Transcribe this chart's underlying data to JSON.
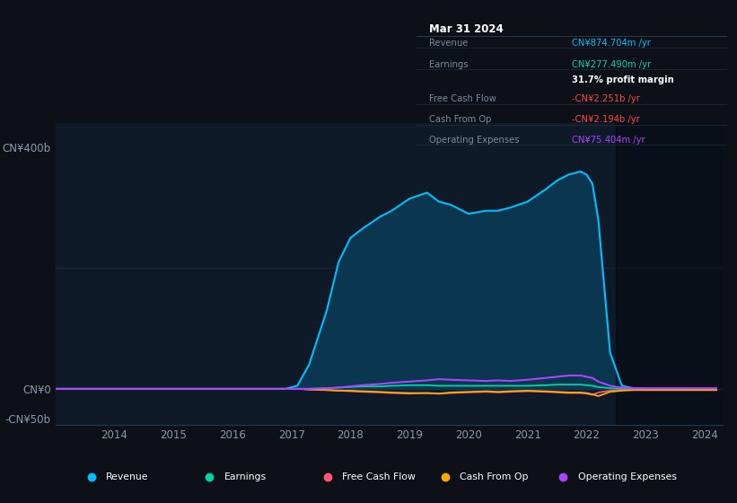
{
  "bg_color": "#0d1117",
  "plot_bg_color": "#0e1a27",
  "grid_color": "#1a3040",
  "years": [
    2013.0,
    2013.5,
    2014.0,
    2014.5,
    2015.0,
    2015.5,
    2016.0,
    2016.5,
    2016.9,
    2017.1,
    2017.3,
    2017.6,
    2017.8,
    2018.0,
    2018.2,
    2018.5,
    2018.7,
    2019.0,
    2019.3,
    2019.5,
    2019.7,
    2020.0,
    2020.3,
    2020.5,
    2020.7,
    2021.0,
    2021.3,
    2021.5,
    2021.7,
    2021.9,
    2022.0,
    2022.1,
    2022.2,
    2022.4,
    2022.6,
    2022.8,
    2023.0,
    2023.5,
    2024.0,
    2024.2
  ],
  "revenue": [
    0,
    0,
    0,
    0,
    0,
    0,
    0,
    0,
    0,
    5,
    40,
    130,
    210,
    250,
    265,
    285,
    295,
    315,
    325,
    310,
    305,
    290,
    295,
    295,
    300,
    310,
    330,
    345,
    355,
    360,
    355,
    340,
    280,
    60,
    5,
    1,
    0,
    0,
    0,
    0
  ],
  "earnings": [
    0,
    0,
    0,
    0,
    0,
    0,
    0,
    0,
    0,
    0,
    0,
    1,
    2,
    3,
    4,
    4,
    5,
    6,
    6,
    5,
    5,
    5,
    5,
    5,
    5,
    5,
    6,
    7,
    7,
    7,
    6,
    5,
    3,
    1,
    0,
    0,
    0,
    0,
    0,
    0
  ],
  "free_cash_flow": [
    0,
    0,
    0,
    0,
    0,
    0,
    0,
    0,
    0,
    0,
    -1,
    -2,
    -3,
    -4,
    -5,
    -6,
    -7,
    -8,
    -7,
    -8,
    -7,
    -6,
    -5,
    -6,
    -5,
    -4,
    -5,
    -6,
    -7,
    -7,
    -8,
    -10,
    -6,
    -3,
    -2,
    -2,
    -2,
    -2,
    -2,
    -2
  ],
  "cash_from_op": [
    0,
    0,
    0,
    0,
    0,
    0,
    0,
    0,
    0,
    0,
    -1,
    -2,
    -3,
    -3,
    -4,
    -5,
    -6,
    -7,
    -7,
    -8,
    -6,
    -5,
    -4,
    -5,
    -4,
    -3,
    -4,
    -5,
    -6,
    -6,
    -7,
    -9,
    -12,
    -5,
    -3,
    -2,
    -2,
    -2,
    -2,
    -2
  ],
  "op_expenses": [
    0,
    0,
    0,
    0,
    0,
    0,
    0,
    0,
    0,
    0,
    0,
    1,
    2,
    4,
    6,
    8,
    10,
    12,
    14,
    16,
    15,
    14,
    13,
    14,
    13,
    15,
    18,
    20,
    22,
    22,
    20,
    18,
    12,
    5,
    2,
    1,
    1,
    1,
    1,
    1
  ],
  "revenue_color": "#00bfff",
  "earnings_color": "#00d4aa",
  "free_cash_color": "#ff5577",
  "cash_op_color": "#ffaa00",
  "op_exp_color": "#aa44ff",
  "revenue_fill_color": "#0a3a55",
  "ylim": [
    -60,
    440
  ],
  "ytick_positions": [
    -50,
    0,
    400
  ],
  "ytick_labels": [
    "-CN¥50b",
    "CN¥0",
    "CN¥400b"
  ],
  "xticks": [
    2014,
    2015,
    2016,
    2017,
    2018,
    2019,
    2020,
    2021,
    2022,
    2023,
    2024
  ],
  "xtick_labels": [
    "2014",
    "2015",
    "2016",
    "2017",
    "2018",
    "2019",
    "2020",
    "2021",
    "2022",
    "2023",
    "2024"
  ],
  "legend_items": [
    {
      "label": "Revenue",
      "color": "#00bfff"
    },
    {
      "label": "Earnings",
      "color": "#00d4aa"
    },
    {
      "label": "Free Cash Flow",
      "color": "#ff5577"
    },
    {
      "label": "Cash From Op",
      "color": "#ffaa00"
    },
    {
      "label": "Operating Expenses",
      "color": "#aa44ff"
    }
  ]
}
